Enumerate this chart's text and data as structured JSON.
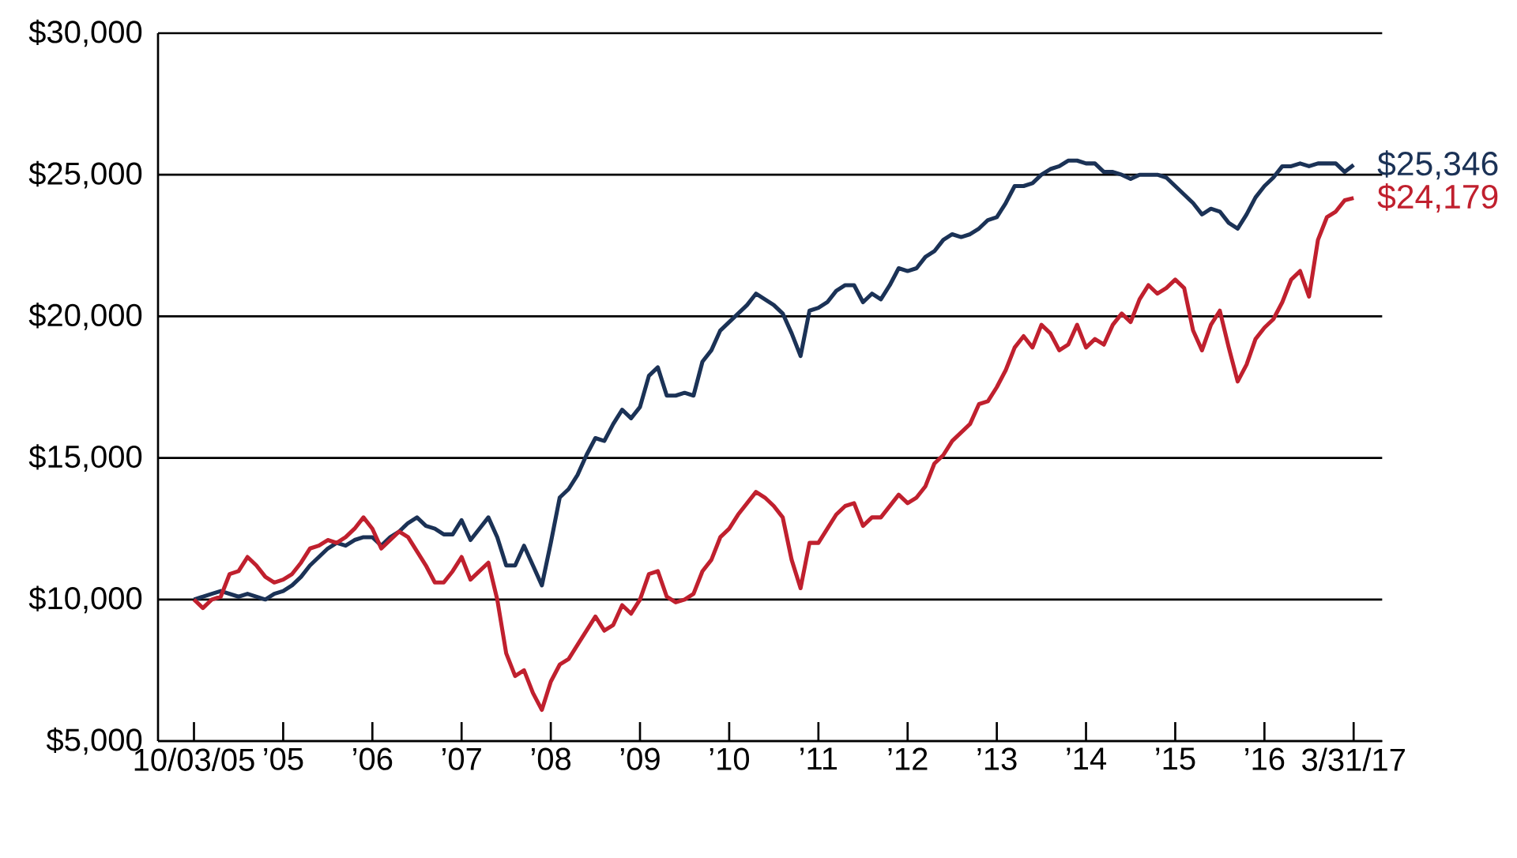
{
  "chart_data": {
    "type": "line",
    "grid": "y",
    "categories": [
      "10/03/05",
      null,
      null,
      null,
      null,
      null,
      null,
      null,
      null,
      null,
      "’05",
      null,
      null,
      null,
      null,
      null,
      null,
      null,
      null,
      null,
      "’06",
      null,
      null,
      null,
      null,
      null,
      null,
      null,
      null,
      null,
      "’07",
      null,
      null,
      null,
      null,
      null,
      null,
      null,
      null,
      null,
      "’08",
      null,
      null,
      null,
      null,
      null,
      null,
      null,
      null,
      null,
      "’09",
      null,
      null,
      null,
      null,
      null,
      null,
      null,
      null,
      null,
      "’10",
      null,
      null,
      null,
      null,
      null,
      null,
      null,
      null,
      null,
      "’11",
      null,
      null,
      null,
      null,
      null,
      null,
      null,
      null,
      null,
      "’12",
      null,
      null,
      null,
      null,
      null,
      null,
      null,
      null,
      null,
      "’13",
      null,
      null,
      null,
      null,
      null,
      null,
      null,
      null,
      null,
      "’14",
      null,
      null,
      null,
      null,
      null,
      null,
      null,
      null,
      null,
      "’15",
      null,
      null,
      null,
      null,
      null,
      null,
      null,
      null,
      null,
      "’16",
      null,
      null,
      null,
      null,
      null,
      null,
      null,
      null,
      null,
      "3/31/17"
    ],
    "ylim": [
      5000,
      30000
    ],
    "yticks": [
      {
        "value": 5000,
        "label": "$5,000"
      },
      {
        "value": 10000,
        "label": "$10,000"
      },
      {
        "value": 15000,
        "label": "$15,000"
      },
      {
        "value": 20000,
        "label": "$20,000"
      },
      {
        "value": 25000,
        "label": "$25,000"
      },
      {
        "value": 30000,
        "label": "$30,000"
      }
    ],
    "series": [
      {
        "color": "#1b3256",
        "values": [
          10000,
          10100,
          10200,
          10300,
          10200,
          10100,
          10200,
          10100,
          10000,
          10200,
          10300,
          10500,
          10800,
          11200,
          11500,
          11800,
          12000,
          11900,
          12100,
          12200,
          12200,
          11900,
          12200,
          12400,
          12700,
          12900,
          12600,
          12500,
          12300,
          12300,
          12800,
          12100,
          12500,
          12900,
          12200,
          11200,
          11200,
          11900,
          11200,
          10500,
          12000,
          13600,
          13900,
          14400,
          15100,
          15700,
          15600,
          16200,
          16700,
          16400,
          16800,
          17900,
          18200,
          17200,
          17200,
          17300,
          17200,
          18400,
          18800,
          19500,
          19800,
          20100,
          20400,
          20800,
          20600,
          20400,
          20100,
          19400,
          18600,
          20200,
          20300,
          20500,
          20900,
          21100,
          21100,
          20500,
          20800,
          20600,
          21100,
          21700,
          21600,
          21700,
          22100,
          22300,
          22700,
          22900,
          22800,
          22900,
          23100,
          23400,
          23500,
          24000,
          24600,
          24600,
          24700,
          25000,
          25200,
          25300,
          25500,
          25500,
          25400,
          25400,
          25100,
          25100,
          25000,
          24850,
          25000,
          25000,
          25000,
          24900,
          24600,
          24300,
          24000,
          23600,
          23800,
          23700,
          23300,
          23100,
          23600,
          24200,
          24600,
          24900,
          25300,
          25300,
          25400,
          25300,
          25400,
          25400,
          25400,
          25100,
          25346
        ],
        "value_labels": [
          null,
          null,
          null,
          null,
          null,
          null,
          null,
          null,
          null,
          null,
          null,
          null,
          null,
          null,
          null,
          null,
          null,
          null,
          null,
          null,
          null,
          null,
          null,
          null,
          null,
          null,
          null,
          null,
          null,
          null,
          null,
          null,
          null,
          null,
          null,
          null,
          null,
          null,
          null,
          null,
          null,
          null,
          null,
          null,
          null,
          null,
          null,
          null,
          null,
          null,
          null,
          null,
          null,
          null,
          null,
          null,
          null,
          null,
          null,
          null,
          null,
          null,
          null,
          null,
          null,
          null,
          null,
          null,
          null,
          null,
          null,
          null,
          null,
          null,
          null,
          null,
          null,
          null,
          null,
          null,
          null,
          null,
          null,
          null,
          null,
          null,
          null,
          null,
          null,
          null,
          null,
          null,
          null,
          null,
          null,
          null,
          null,
          null,
          null,
          null,
          null,
          null,
          null,
          null,
          null,
          null,
          null,
          null,
          null,
          null,
          null,
          null,
          null,
          null,
          null,
          null,
          null,
          null,
          null,
          null,
          null,
          null,
          null,
          null,
          null,
          null,
          null,
          null,
          null,
          null,
          "$25,346"
        ]
      },
      {
        "color": "#c0202e",
        "values": [
          10000,
          9700,
          10000,
          10100,
          10900,
          11000,
          11500,
          11200,
          10800,
          10600,
          10700,
          10900,
          11300,
          11800,
          11900,
          12100,
          12000,
          12200,
          12500,
          12900,
          12500,
          11800,
          12100,
          12400,
          12200,
          11700,
          11200,
          10600,
          10600,
          11000,
          11500,
          10700,
          11000,
          11300,
          10000,
          8100,
          7300,
          7500,
          6700,
          6100,
          7100,
          7700,
          7900,
          8400,
          8900,
          9400,
          8900,
          9100,
          9800,
          9500,
          10000,
          10900,
          11000,
          10100,
          9900,
          10000,
          10200,
          11000,
          11400,
          12200,
          12500,
          13000,
          13400,
          13800,
          13600,
          13300,
          12900,
          11400,
          10400,
          12000,
          12000,
          12500,
          13000,
          13300,
          13400,
          12600,
          12900,
          12900,
          13300,
          13700,
          13400,
          13600,
          14000,
          14800,
          15100,
          15600,
          15900,
          16200,
          16900,
          17000,
          17500,
          18100,
          18900,
          19300,
          18900,
          19700,
          19400,
          18800,
          19000,
          19700,
          18900,
          19200,
          19000,
          19700,
          20100,
          19800,
          20600,
          21100,
          20800,
          21000,
          21300,
          21000,
          19500,
          18800,
          19700,
          20200,
          18900,
          17700,
          18300,
          19200,
          19600,
          19900,
          20500,
          21300,
          21600,
          20700,
          22700,
          23500,
          23700,
          24100,
          24179
        ],
        "value_labels": [
          null,
          null,
          null,
          null,
          null,
          null,
          null,
          null,
          null,
          null,
          null,
          null,
          null,
          null,
          null,
          null,
          null,
          null,
          null,
          null,
          null,
          null,
          null,
          null,
          null,
          null,
          null,
          null,
          null,
          null,
          null,
          null,
          null,
          null,
          null,
          null,
          null,
          null,
          null,
          null,
          null,
          null,
          null,
          null,
          null,
          null,
          null,
          null,
          null,
          null,
          null,
          null,
          null,
          null,
          null,
          null,
          null,
          null,
          null,
          null,
          null,
          null,
          null,
          null,
          null,
          null,
          null,
          null,
          null,
          null,
          null,
          null,
          null,
          null,
          null,
          null,
          null,
          null,
          null,
          null,
          null,
          null,
          null,
          null,
          null,
          null,
          null,
          null,
          null,
          null,
          null,
          null,
          null,
          null,
          null,
          null,
          null,
          null,
          null,
          null,
          null,
          null,
          null,
          null,
          null,
          null,
          null,
          null,
          null,
          null,
          null,
          null,
          null,
          null,
          null,
          null,
          null,
          null,
          null,
          null,
          null,
          null,
          null,
          null,
          null,
          null,
          null,
          null,
          null,
          null,
          "$24,179"
        ]
      }
    ]
  }
}
